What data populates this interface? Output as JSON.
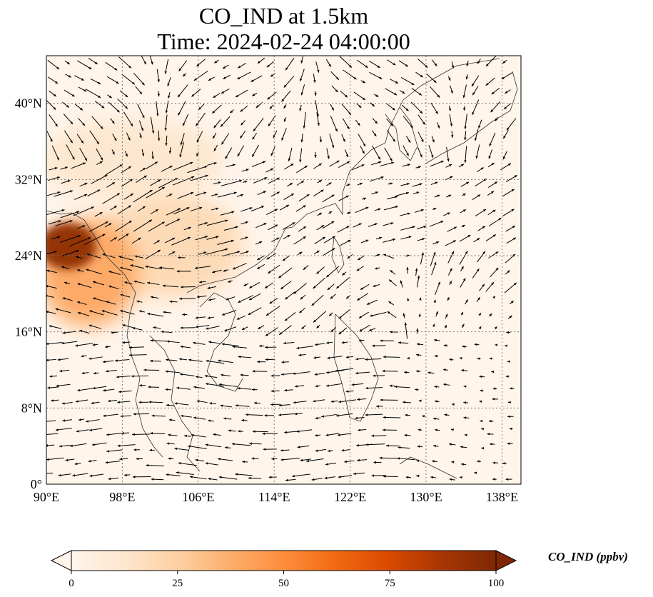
{
  "title": {
    "line1": "CO_IND at 1.5km",
    "line2": "Time: 2024-02-24 04:00:00"
  },
  "map": {
    "projection": "PlateCarree",
    "lon_range": [
      90,
      140
    ],
    "lat_range": [
      0,
      45
    ],
    "gridlines": "dotted",
    "field": "CO_IND",
    "overlay": "wind vectors (quivers)",
    "colormap": [
      "#fff5eb",
      "#fee6ce",
      "#fdd0a2",
      "#fdae6b",
      "#fd8d3c",
      "#f16913",
      "#d94801",
      "#a63603",
      "#7f2704"
    ],
    "x_ticks": [
      {
        "value": 90,
        "label": "90°E"
      },
      {
        "value": 98,
        "label": "98°E"
      },
      {
        "value": 106,
        "label": "106°E"
      },
      {
        "value": 114,
        "label": "114°E"
      },
      {
        "value": 122,
        "label": "122°E"
      },
      {
        "value": 130,
        "label": "130°E"
      },
      {
        "value": 138,
        "label": "138°E"
      }
    ],
    "y_ticks": [
      {
        "value": 0,
        "label": "0°"
      },
      {
        "value": 8,
        "label": "8°N"
      },
      {
        "value": 16,
        "label": "16°N"
      },
      {
        "value": 24,
        "label": "24°N"
      },
      {
        "value": 32,
        "label": "32°N"
      },
      {
        "value": 40,
        "label": "40°N"
      }
    ],
    "concentration_regions": [
      {
        "name": "northeast-india-myanmar-high",
        "lon": [
          90,
          94.5
        ],
        "lat": [
          23,
          27
        ],
        "level": 95
      },
      {
        "name": "indochina-plume",
        "lon": [
          90,
          99
        ],
        "lat": [
          17,
          27.5
        ],
        "level": 40
      },
      {
        "name": "southwest-china-plume",
        "lon": [
          96,
          110
        ],
        "lat": [
          20,
          30
        ],
        "level": 20
      },
      {
        "name": "north-plume",
        "lon": [
          90,
          108
        ],
        "lat": [
          30,
          38
        ],
        "level": 12
      }
    ]
  },
  "colorbar": {
    "label": "CO_IND (ppbv)",
    "min": 0,
    "max": 100,
    "extend": "both",
    "ticks": [
      {
        "value": 0,
        "label": "0"
      },
      {
        "value": 25,
        "label": "25"
      },
      {
        "value": 50,
        "label": "50"
      },
      {
        "value": 75,
        "label": "75"
      },
      {
        "value": 100,
        "label": "100"
      }
    ]
  }
}
